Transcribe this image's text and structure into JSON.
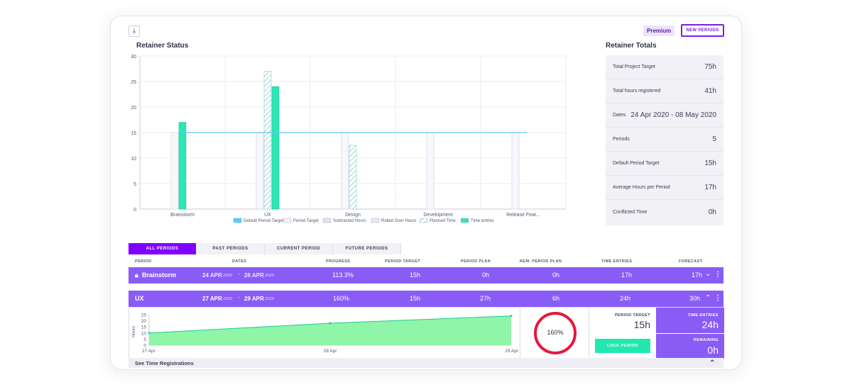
{
  "header": {
    "download_icon": "download-icon",
    "premium_label": "Premium",
    "new_periods_label": "NEW PERIODS"
  },
  "retainer_status": {
    "title": "Retainer Status"
  },
  "chart_data": {
    "type": "bar",
    "title": "Retainer Status",
    "categories": [
      "Brainstorm",
      "UX",
      "Design",
      "Development",
      "Release Feat..."
    ],
    "ylim": [
      0,
      30
    ],
    "yticks": [
      0,
      5,
      10,
      15,
      20,
      25,
      30
    ],
    "grid": true,
    "legend_position": "bottom",
    "series": [
      {
        "name": "Default Period Target",
        "type": "line",
        "values": [
          15,
          15,
          15,
          15,
          15
        ],
        "color": "#5bc8f5"
      },
      {
        "name": "Period Target",
        "values": [
          15,
          15,
          15,
          15,
          15
        ],
        "color": "#f4f4fa"
      },
      {
        "name": "Subtracted Hours",
        "values": [
          0,
          0,
          0,
          0,
          0
        ],
        "color": "#e4e4ef"
      },
      {
        "name": "Rolled Over Hours",
        "values": [
          0,
          0,
          0,
          0,
          0
        ],
        "color": "#e8e8f4"
      },
      {
        "name": "Planned Time",
        "values": [
          0,
          27,
          12.5,
          0,
          0
        ],
        "color": "#9fe6dc"
      },
      {
        "name": "Time entries",
        "values": [
          17,
          24,
          0,
          0,
          0
        ],
        "color": "#2ce6b4"
      }
    ]
  },
  "retainer_totals": {
    "title": "Retainer Totals",
    "rows": [
      {
        "label": "Total Project Target",
        "value": "75h"
      },
      {
        "label": "Total hours registered",
        "value": "41h"
      },
      {
        "label": "Dates",
        "value": "24 Apr 2020 - 08 May 2020"
      },
      {
        "label": "Periods",
        "value": "5"
      },
      {
        "label": "Default Period Target",
        "value": "15h"
      },
      {
        "label": "Average Hours per Period",
        "value": "17h"
      },
      {
        "label": "Conflicted Time",
        "value": "0h"
      }
    ]
  },
  "tabs": [
    {
      "label": "ALL PERIODS",
      "active": true
    },
    {
      "label": "PAST PERIODS",
      "active": false
    },
    {
      "label": "CURRENT PERIOD",
      "active": false
    },
    {
      "label": "FUTURE PERIODS",
      "active": false
    }
  ],
  "table": {
    "headers": [
      "PERIOD",
      "DATES",
      "PROGRESS",
      "PERIOD TARGET",
      "PERIOD PLAN",
      "REM. PERIOD PLAN",
      "TIME ENTRIES",
      "FORECAST"
    ],
    "rows": [
      {
        "period": "Brainstorm",
        "start_day": "24 APR",
        "start_year": "2020",
        "sep": "-",
        "end_day": "26 APR",
        "end_year": "2020",
        "progress": "113.3%",
        "target": "15h",
        "plan": "0h",
        "rem_plan": "0h",
        "time_entries": "17h",
        "forecast": "17h"
      },
      {
        "period": "UX",
        "start_day": "27 APR",
        "start_year": "2020",
        "sep": "-",
        "end_day": "29 APR",
        "end_year": "2020",
        "progress": "160%",
        "target": "15h",
        "plan": "27h",
        "rem_plan": "6h",
        "time_entries": "24h",
        "forecast": "30h"
      }
    ]
  },
  "detail": {
    "mini_chart": {
      "type": "area",
      "ylabel": "Hours",
      "yticks": [
        "25",
        "20",
        "15",
        "10",
        "5",
        "0"
      ],
      "x_labels": [
        "27 Apr",
        "28 Apr",
        "29 Apr"
      ],
      "values": [
        10,
        18,
        24
      ],
      "target_line": [
        12,
        18,
        24
      ]
    },
    "progress_value": "160%",
    "progress_fraction": 1.6,
    "period_target_label": "PERIOD TARGET",
    "period_target_value": "15h",
    "lock_period_label": "LOCK PERIOD",
    "time_entries_label": "TIME ENTRIES",
    "time_entries_value": "24h",
    "remaining_label": "REMAINING",
    "remaining_value": "0h"
  },
  "footer": {
    "see_time_registrations": "See Time Registrations"
  }
}
